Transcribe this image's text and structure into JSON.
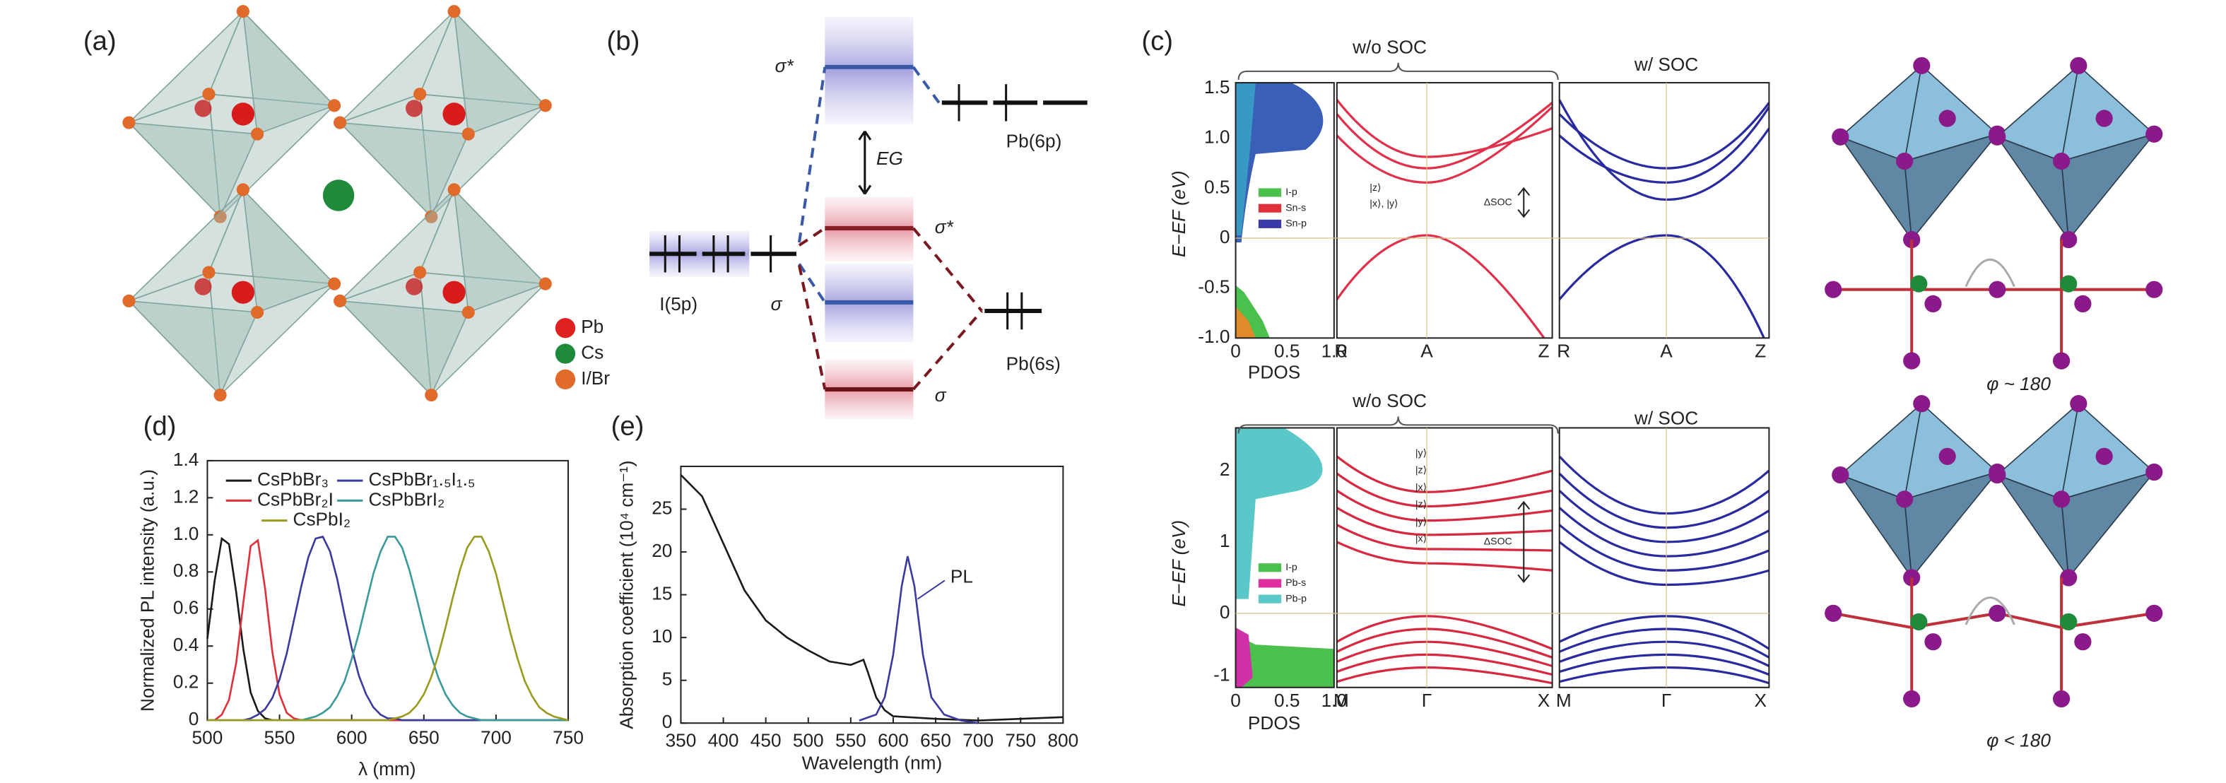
{
  "panels": {
    "a": {
      "label": "(a)",
      "legend": [
        "Pb",
        "Cs",
        "I/Br"
      ]
    },
    "b": {
      "label": "(b)",
      "sigma_star_top": "σ*",
      "gap": "EG",
      "pb6p": "Pb(6p)",
      "i5p": "I(5p)",
      "sigma_left": "σ",
      "sigma_star_mid": "σ*",
      "sigma_bottom": "σ",
      "pb6s": "Pb(6s)"
    },
    "c": {
      "label": "(c)",
      "y_label": "E−EF (eV)",
      "top": {
        "left_title": "w/o SOC",
        "right_title": "w/ SOC",
        "yticks": [
          "1.5",
          "1.0",
          "0.5",
          "0",
          "-0.5",
          "-1.0"
        ],
        "pdos_ticks": [
          "0",
          "0.5",
          "1.0"
        ],
        "kpoints": [
          "R",
          "A",
          "Z"
        ],
        "pdos_label": "PDOS",
        "legend": [
          "I-p",
          "Sn-s",
          "Sn-p"
        ],
        "states": [
          "|z⟩",
          "|x⟩, |y⟩"
        ],
        "delta": "ΔSOC"
      },
      "bottom": {
        "left_title": "w/o SOC",
        "right_title": "w/ SOC",
        "yticks": [
          "2",
          "1",
          "0",
          "-1"
        ],
        "pdos_ticks": [
          "0",
          "0.5",
          "1.0"
        ],
        "kpoints": [
          "M",
          "Γ",
          "X"
        ],
        "pdos_label": "PDOS",
        "legend": [
          "I-p",
          "Pb-s",
          "Pb-p"
        ],
        "states": [
          "|y⟩",
          "|z⟩",
          "|x⟩",
          "|z⟩",
          "|y⟩",
          "|x⟩"
        ],
        "delta": "ΔSOC"
      },
      "angle_top": "φ ~ 180",
      "angle_bottom": "φ < 180"
    }
  },
  "chart_data": [
    {
      "type": "line",
      "label": "(d)",
      "x_label": "λ (mm)",
      "y_label": "Normalized PL intensity (a.u.)",
      "xlim": [
        500,
        750
      ],
      "ylim": [
        0,
        1.4
      ],
      "xticks": [
        500,
        550,
        600,
        650,
        700,
        750
      ],
      "yticks": [
        0,
        0.2,
        0.4,
        0.6,
        0.8,
        {
          "value": 1,
          "label": "1.0"
        },
        1.2,
        1.4
      ],
      "x": [
        500,
        505,
        510,
        515,
        520,
        525,
        530,
        535,
        540,
        545,
        550,
        555,
        560,
        565,
        570,
        575,
        580,
        585,
        590,
        595,
        600,
        605,
        610,
        615,
        620,
        625,
        630,
        635,
        640,
        645,
        650,
        655,
        660,
        665,
        670,
        675,
        680,
        685,
        690,
        695,
        700,
        705,
        710,
        715,
        720,
        725,
        730,
        735,
        740,
        745,
        750
      ],
      "series": [
        {
          "name": "CsPbBr₃",
          "color": "#1a1a1a",
          "values": [
            0.44,
            0.75,
            0.98,
            0.95,
            0.69,
            0.38,
            0.15,
            0.05,
            0.01,
            0,
            0,
            0,
            0,
            0,
            0,
            0,
            0,
            0,
            0,
            0,
            0,
            0,
            0,
            0,
            0,
            0,
            0,
            0,
            0,
            0,
            0,
            0,
            0,
            0,
            0,
            0,
            0,
            0,
            0,
            0,
            0,
            0,
            0,
            0,
            0,
            0,
            0,
            0,
            0,
            0,
            0
          ]
        },
        {
          "name": "CsPbBr₂I",
          "color": "#e0303a",
          "values": [
            0,
            0,
            0.03,
            0.11,
            0.31,
            0.64,
            0.94,
            0.97,
            0.71,
            0.37,
            0.14,
            0.04,
            0.01,
            0,
            0,
            0,
            0,
            0,
            0,
            0,
            0,
            0,
            0,
            0,
            0,
            0,
            0,
            0,
            0,
            0,
            0,
            0,
            0,
            0,
            0,
            0,
            0,
            0,
            0,
            0,
            0,
            0,
            0,
            0,
            0,
            0,
            0,
            0,
            0,
            0,
            0
          ]
        },
        {
          "name": "CsPbBr₁.₅I₁.₅",
          "color": "#3b3b9e",
          "values": [
            0,
            0,
            0,
            0,
            0,
            0,
            0.01,
            0.03,
            0.06,
            0.12,
            0.22,
            0.36,
            0.54,
            0.72,
            0.88,
            0.98,
            0.99,
            0.91,
            0.76,
            0.57,
            0.39,
            0.24,
            0.14,
            0.07,
            0.03,
            0.01,
            0.01,
            0,
            0,
            0,
            0,
            0,
            0,
            0,
            0,
            0,
            0,
            0,
            0,
            0,
            0,
            0,
            0,
            0,
            0,
            0,
            0,
            0,
            0,
            0,
            0
          ]
        },
        {
          "name": "CsPbBrI₂",
          "color": "#3a9a9a",
          "values": [
            0,
            0,
            0,
            0,
            0,
            0,
            0,
            0,
            0,
            0,
            0,
            0,
            0,
            0,
            0.01,
            0.02,
            0.04,
            0.07,
            0.13,
            0.21,
            0.33,
            0.47,
            0.63,
            0.79,
            0.91,
            0.99,
            0.99,
            0.93,
            0.81,
            0.66,
            0.5,
            0.35,
            0.23,
            0.14,
            0.08,
            0.04,
            0.02,
            0.01,
            0,
            0,
            0,
            0,
            0,
            0,
            0,
            0,
            0,
            0,
            0,
            0,
            0
          ]
        },
        {
          "name": "CsPbI₂",
          "color": "#9a9a1e",
          "values": [
            0,
            0,
            0,
            0,
            0,
            0,
            0,
            0,
            0,
            0,
            0,
            0,
            0,
            0,
            0,
            0,
            0,
            0,
            0,
            0,
            0,
            0,
            0,
            0,
            0,
            0,
            0.01,
            0.02,
            0.04,
            0.08,
            0.14,
            0.23,
            0.35,
            0.5,
            0.66,
            0.81,
            0.93,
            0.99,
            0.99,
            0.91,
            0.79,
            0.63,
            0.47,
            0.33,
            0.21,
            0.13,
            0.07,
            0.04,
            0.02,
            0.01,
            0
          ]
        }
      ]
    },
    {
      "type": "line",
      "label": "(e)",
      "x_label": "Wavelength (nm)",
      "y_label": "Absorption coefficient (10⁴ cm⁻¹)",
      "annotation": "PL",
      "xlim": [
        350,
        800
      ],
      "ylim": [
        0,
        30
      ],
      "xticks": [
        350,
        400,
        450,
        500,
        550,
        600,
        650,
        700,
        750,
        800
      ],
      "yticks": [
        0,
        5,
        10,
        15,
        20,
        25
      ],
      "series": [
        {
          "color": "#1a1a1a",
          "x": [
            350,
            375,
            400,
            425,
            450,
            475,
            500,
            525,
            550,
            560,
            565,
            570,
            580,
            590,
            600,
            650,
            700,
            750,
            800
          ],
          "values": [
            29,
            26.5,
            21,
            15.5,
            12,
            10,
            8.5,
            7.2,
            6.8,
            7.2,
            7.4,
            6,
            3,
            1.5,
            0.8,
            0.5,
            0.3,
            0.5,
            0.7
          ]
        },
        {
          "color": "#3b3b9e",
          "x": [
            560,
            580,
            590,
            600,
            610,
            617,
            625,
            635,
            645,
            660,
            680,
            700
          ],
          "values": [
            0.3,
            1,
            3,
            8,
            16,
            19.5,
            16,
            8,
            3,
            1,
            0.3,
            0
          ]
        }
      ]
    }
  ]
}
